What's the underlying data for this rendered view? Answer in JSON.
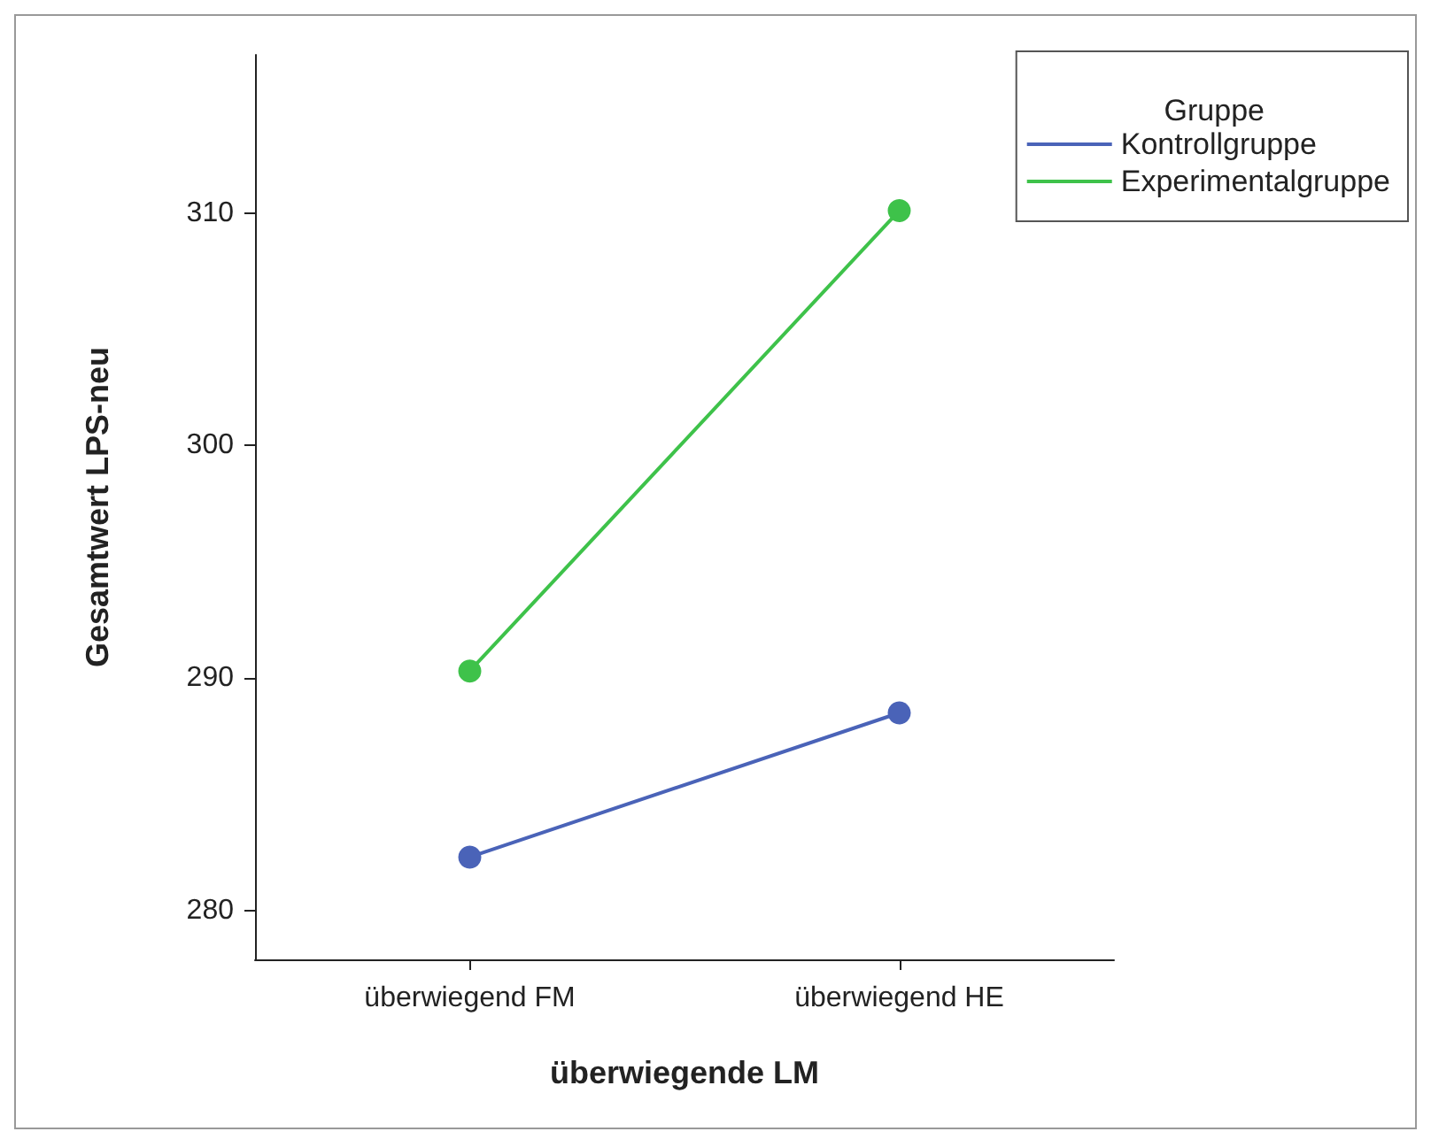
{
  "chart_data": {
    "type": "line",
    "xlabel": "überwiegende LM",
    "ylabel": "Gesamtwert LPS-neu",
    "legend_title": "Gruppe",
    "categories": [
      "überwiegend FM",
      "überwiegend HE"
    ],
    "series": [
      {
        "name": "Kontrollgruppe",
        "color": "#4a63b8",
        "values": [
          282.3,
          288.5
        ]
      },
      {
        "name": "Experimentalgruppe",
        "color": "#3ec24a",
        "values": [
          290.3,
          310.1
        ]
      }
    ],
    "ylim": [
      277.9,
      316.8
    ],
    "yticks": [
      280,
      290,
      300,
      310
    ],
    "grid": false,
    "legend": "top right",
    "marker": "circle",
    "line_style": "solid"
  }
}
